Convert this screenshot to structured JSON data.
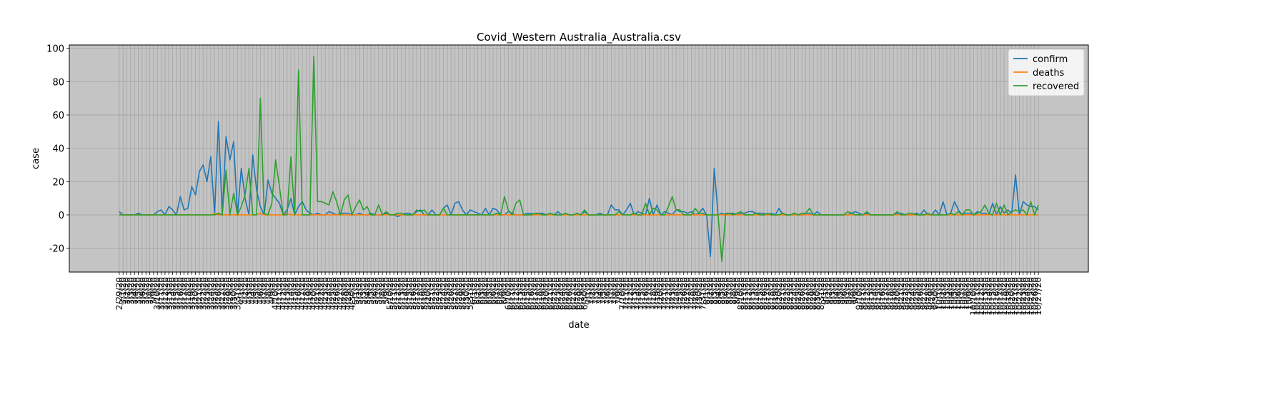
{
  "chart_data": {
    "type": "line",
    "title": "Covid_Western Australia_Australia.csv",
    "x_label": "date",
    "y_label": "case",
    "categories": [
      "2/29/20",
      "3/1/20",
      "3/2/20",
      "3/3/20",
      "3/4/20",
      "3/5/20",
      "3/6/20",
      "3/7/20",
      "3/8/20",
      "3/9/20",
      "3/10/20",
      "3/11/20",
      "3/12/20",
      "3/13/20",
      "3/14/20",
      "3/15/20",
      "3/16/20",
      "3/17/20",
      "3/18/20",
      "3/19/20",
      "3/20/20",
      "3/21/20",
      "3/22/20",
      "3/23/20",
      "3/24/20",
      "3/25/20",
      "3/26/20",
      "3/27/20",
      "3/28/20",
      "3/29/20",
      "3/30/20",
      "3/31/20",
      "4/1/20",
      "4/2/20",
      "4/3/20",
      "4/4/20",
      "4/5/20",
      "4/6/20",
      "4/7/20",
      "4/8/20",
      "4/9/20",
      "4/10/20",
      "4/11/20",
      "4/12/20",
      "4/13/20",
      "4/14/20",
      "4/15/20",
      "4/16/20",
      "4/17/20",
      "4/18/20",
      "4/19/20",
      "4/20/20",
      "4/21/20",
      "4/22/20",
      "4/23/20",
      "4/24/20",
      "4/25/20",
      "4/26/20",
      "4/27/20",
      "4/28/20",
      "4/29/20",
      "4/30/20",
      "5/1/20",
      "5/2/20",
      "5/3/20",
      "5/4/20",
      "5/5/20",
      "5/6/20",
      "5/7/20",
      "5/8/20",
      "5/9/20",
      "5/10/20",
      "5/11/20",
      "5/12/20",
      "5/13/20",
      "5/14/20",
      "5/15/20",
      "5/16/20",
      "5/17/20",
      "5/18/20",
      "5/19/20",
      "5/20/20",
      "5/21/20",
      "5/22/20",
      "5/23/20",
      "5/24/20",
      "5/25/20",
      "5/26/20",
      "5/27/20",
      "5/28/20",
      "5/29/20",
      "5/30/20",
      "5/31/20",
      "6/1/20",
      "6/2/20",
      "6/3/20",
      "6/4/20",
      "6/5/20",
      "6/6/20",
      "6/7/20",
      "6/8/20",
      "6/9/20",
      "6/10/20",
      "6/11/20",
      "6/12/20",
      "6/13/20",
      "6/14/20",
      "6/15/20",
      "6/16/20",
      "6/17/20",
      "6/18/20",
      "6/19/20",
      "6/20/20",
      "6/21/20",
      "6/22/20",
      "6/23/20",
      "6/24/20",
      "6/25/20",
      "6/26/20",
      "6/27/20",
      "6/28/20",
      "6/29/20",
      "6/30/20",
      "7/1/20",
      "7/2/20",
      "7/3/20",
      "7/4/20",
      "7/5/20",
      "7/6/20",
      "7/7/20",
      "7/8/20",
      "7/9/20",
      "7/10/20",
      "7/11/20",
      "7/12/20",
      "7/13/20",
      "7/14/20",
      "7/15/20",
      "7/16/20",
      "7/17/20",
      "7/18/20",
      "7/19/20",
      "7/20/20",
      "7/21/20",
      "7/22/20",
      "7/23/20",
      "7/24/20",
      "7/25/20",
      "7/26/20",
      "7/27/20",
      "7/28/20",
      "7/29/20",
      "7/30/20",
      "7/31/20",
      "8/1/20",
      "8/2/20",
      "8/3/20",
      "8/4/20",
      "8/5/20",
      "8/6/20",
      "8/7/20",
      "8/8/20",
      "8/9/20",
      "8/10/20",
      "8/11/20",
      "8/12/20",
      "8/13/20",
      "8/14/20",
      "8/15/20",
      "8/16/20",
      "8/17/20",
      "8/18/20",
      "8/19/20",
      "8/20/20",
      "8/21/20",
      "8/22/20",
      "8/23/20",
      "8/24/20",
      "8/25/20",
      "8/26/20",
      "8/27/20",
      "8/28/20",
      "8/29/20",
      "8/30/20",
      "8/31/20",
      "9/1/20",
      "9/2/20",
      "9/3/20",
      "9/4/20",
      "9/5/20",
      "9/6/20",
      "9/7/20",
      "9/8/20",
      "9/9/20",
      "9/10/20",
      "9/11/20",
      "9/12/20",
      "9/13/20",
      "9/14/20",
      "9/15/20",
      "9/16/20",
      "9/17/20",
      "9/18/20",
      "9/19/20",
      "9/20/20",
      "9/21/20",
      "9/22/20",
      "9/23/20",
      "9/24/20",
      "9/25/20",
      "9/26/20",
      "9/27/20",
      "9/28/20",
      "9/29/20",
      "9/30/20",
      "10/1/20",
      "10/2/20",
      "10/3/20",
      "10/4/20",
      "10/5/20",
      "10/6/20",
      "10/7/20",
      "10/8/20",
      "10/9/20",
      "10/10/20",
      "10/11/20",
      "10/12/20",
      "10/13/20",
      "10/14/20",
      "10/15/20",
      "10/16/20",
      "10/17/20",
      "10/18/20",
      "10/19/20",
      "10/20/20",
      "10/21/20",
      "10/22/20",
      "10/23/20",
      "10/24/20",
      "10/25/20",
      "10/26/20",
      "10/27/20"
    ],
    "series": [
      {
        "name": "confirm",
        "color": "#1f77b4",
        "values": [
          2,
          0,
          0,
          0,
          0,
          1,
          0,
          0,
          0,
          0,
          2,
          3,
          0,
          5,
          3,
          0,
          11,
          3,
          4,
          17,
          12,
          26,
          30,
          20,
          35,
          0,
          56,
          0,
          47,
          33,
          44,
          0,
          28,
          10,
          0,
          36,
          15,
          5,
          0,
          21,
          13,
          10,
          7,
          0,
          3,
          10,
          0,
          5,
          8,
          3,
          1,
          0,
          1,
          0,
          0,
          2,
          1,
          0,
          1,
          1,
          1,
          0,
          0,
          1,
          0,
          0,
          1,
          0,
          0,
          0,
          1,
          0,
          0,
          -1,
          0,
          1,
          1,
          0,
          2,
          3,
          0,
          0,
          3,
          0,
          0,
          4,
          6,
          0,
          7,
          8,
          3,
          0,
          3,
          2,
          1,
          0,
          4,
          0,
          4,
          3,
          0,
          0,
          2,
          1,
          0,
          0,
          0,
          1,
          1,
          0,
          1,
          1,
          0,
          1,
          0,
          2,
          0,
          1,
          0,
          0,
          1,
          0,
          2,
          0,
          0,
          0,
          1,
          0,
          0,
          6,
          3,
          3,
          0,
          3,
          7,
          0,
          2,
          1,
          0,
          10,
          0,
          6,
          0,
          2,
          1,
          0,
          3,
          2,
          2,
          1,
          2,
          0,
          1,
          4,
          0,
          -25,
          28,
          0,
          1,
          0,
          1,
          1,
          0,
          1,
          1,
          2,
          2,
          1,
          1,
          1,
          0,
          1,
          0,
          4,
          0,
          0,
          0,
          1,
          0,
          0,
          1,
          1,
          0,
          2,
          0,
          0,
          0,
          0,
          0,
          0,
          0,
          0,
          1,
          2,
          1,
          0,
          1,
          0,
          0,
          0,
          0,
          0,
          0,
          0,
          1,
          1,
          0,
          0,
          0,
          1,
          0,
          3,
          0,
          0,
          3,
          0,
          8,
          0,
          1,
          8,
          3,
          0,
          1,
          1,
          0,
          2,
          1,
          1,
          0,
          7,
          0,
          5,
          1,
          3,
          1,
          24,
          0,
          8,
          6,
          5,
          5,
          3
        ]
      },
      {
        "name": "deaths",
        "color": "#ff7f0e",
        "values": [
          0,
          0,
          0,
          0,
          0,
          0,
          0,
          0,
          0,
          0,
          0,
          0,
          0,
          0,
          0,
          0,
          0,
          0,
          0,
          0,
          0,
          0,
          0,
          0,
          0,
          1,
          0,
          0,
          0,
          0,
          0,
          0,
          0,
          0,
          0,
          0,
          0,
          1,
          0,
          0,
          0,
          0,
          0,
          0,
          1,
          0,
          0,
          0,
          0,
          0,
          0,
          0,
          0,
          0,
          0,
          0,
          0,
          0,
          0,
          0,
          0,
          0,
          0,
          0,
          0,
          0,
          0,
          0,
          0,
          0,
          0,
          0,
          0,
          0,
          0,
          0,
          0,
          0,
          0,
          0,
          0,
          0,
          0,
          0,
          0,
          0,
          0,
          0,
          0,
          0,
          0,
          0,
          0,
          0,
          0,
          0,
          0,
          0,
          0,
          0,
          0,
          0,
          0,
          0,
          0,
          0,
          0,
          0,
          0,
          0,
          0,
          0,
          0,
          0,
          0,
          0,
          0,
          0,
          0,
          0,
          0,
          0,
          0,
          0,
          0,
          0,
          0,
          0,
          0,
          0,
          0,
          0,
          0,
          0,
          0,
          0,
          0,
          0,
          0,
          0,
          0,
          0,
          0,
          0,
          0,
          0,
          0,
          0,
          0,
          0,
          0,
          0,
          0,
          0,
          0,
          0,
          0,
          0,
          0,
          0,
          0,
          0,
          0,
          0,
          0,
          0,
          0,
          0,
          0,
          0,
          0,
          0,
          0,
          0,
          0,
          0,
          0,
          0,
          0,
          0,
          0,
          0,
          0,
          0,
          0,
          0,
          0,
          0,
          0,
          0,
          0,
          0,
          0,
          0,
          0,
          0,
          0,
          0,
          0,
          0,
          0,
          0,
          0,
          0,
          0,
          0,
          0,
          0,
          0,
          0,
          0,
          0,
          0,
          0,
          0,
          0,
          0,
          0,
          0,
          0,
          0,
          0,
          0,
          0,
          0,
          0,
          0,
          0,
          0,
          0,
          0,
          0,
          0,
          0,
          0,
          0,
          0,
          0,
          0,
          0,
          0,
          0
        ]
      },
      {
        "name": "recovered",
        "color": "#2ca02c",
        "values": [
          0,
          0,
          0,
          0,
          0,
          0,
          0,
          0,
          0,
          0,
          0,
          0,
          0,
          0,
          0,
          0,
          0,
          0,
          0,
          0,
          0,
          0,
          0,
          0,
          0,
          0,
          1,
          0,
          27,
          0,
          13,
          0,
          5,
          12,
          28,
          0,
          0,
          70,
          1,
          0,
          7,
          33,
          17,
          0,
          0,
          35,
          0,
          87,
          0,
          0,
          0,
          95,
          8,
          8,
          7,
          6,
          14,
          8,
          0,
          9,
          12,
          0,
          5,
          9,
          3,
          5,
          0,
          0,
          6,
          0,
          2,
          0,
          0,
          1,
          1,
          0,
          0,
          0,
          3,
          2,
          3,
          0,
          0,
          0,
          0,
          4,
          0,
          0,
          0,
          0,
          0,
          0,
          0,
          0,
          0,
          0,
          0,
          0,
          0,
          1,
          0,
          11,
          3,
          0,
          7,
          9,
          0,
          0,
          0,
          1,
          1,
          0,
          0,
          1,
          0,
          0,
          0,
          1,
          0,
          0,
          1,
          0,
          3,
          0,
          0,
          0,
          0,
          0,
          0,
          0,
          0,
          2,
          0,
          0,
          0,
          1,
          0,
          0,
          7,
          0,
          4,
          3,
          0,
          0,
          5,
          11,
          3,
          3,
          0,
          0,
          0,
          4,
          1,
          1,
          0,
          0,
          0,
          0,
          -28,
          1,
          1,
          0,
          1,
          2,
          0,
          0,
          0,
          1,
          0,
          0,
          1,
          0,
          0,
          0,
          1,
          0,
          0,
          1,
          0,
          1,
          1,
          4,
          0,
          0,
          0,
          0,
          0,
          0,
          0,
          0,
          0,
          2,
          1,
          0,
          0,
          0,
          2,
          0,
          0,
          0,
          0,
          0,
          0,
          0,
          2,
          0,
          0,
          1,
          1,
          0,
          0,
          0,
          1,
          0,
          0,
          0,
          0,
          0,
          1,
          0,
          2,
          0,
          3,
          3,
          0,
          1,
          2,
          6,
          1,
          0,
          7,
          0,
          6,
          0,
          2,
          3,
          2,
          3,
          0,
          8,
          0,
          6
        ]
      }
    ],
    "ylim": [
      -34.3,
      102
    ],
    "yticks": [
      -20,
      0,
      20,
      40,
      60,
      80,
      100
    ],
    "grid": true,
    "legend": "upper right"
  }
}
